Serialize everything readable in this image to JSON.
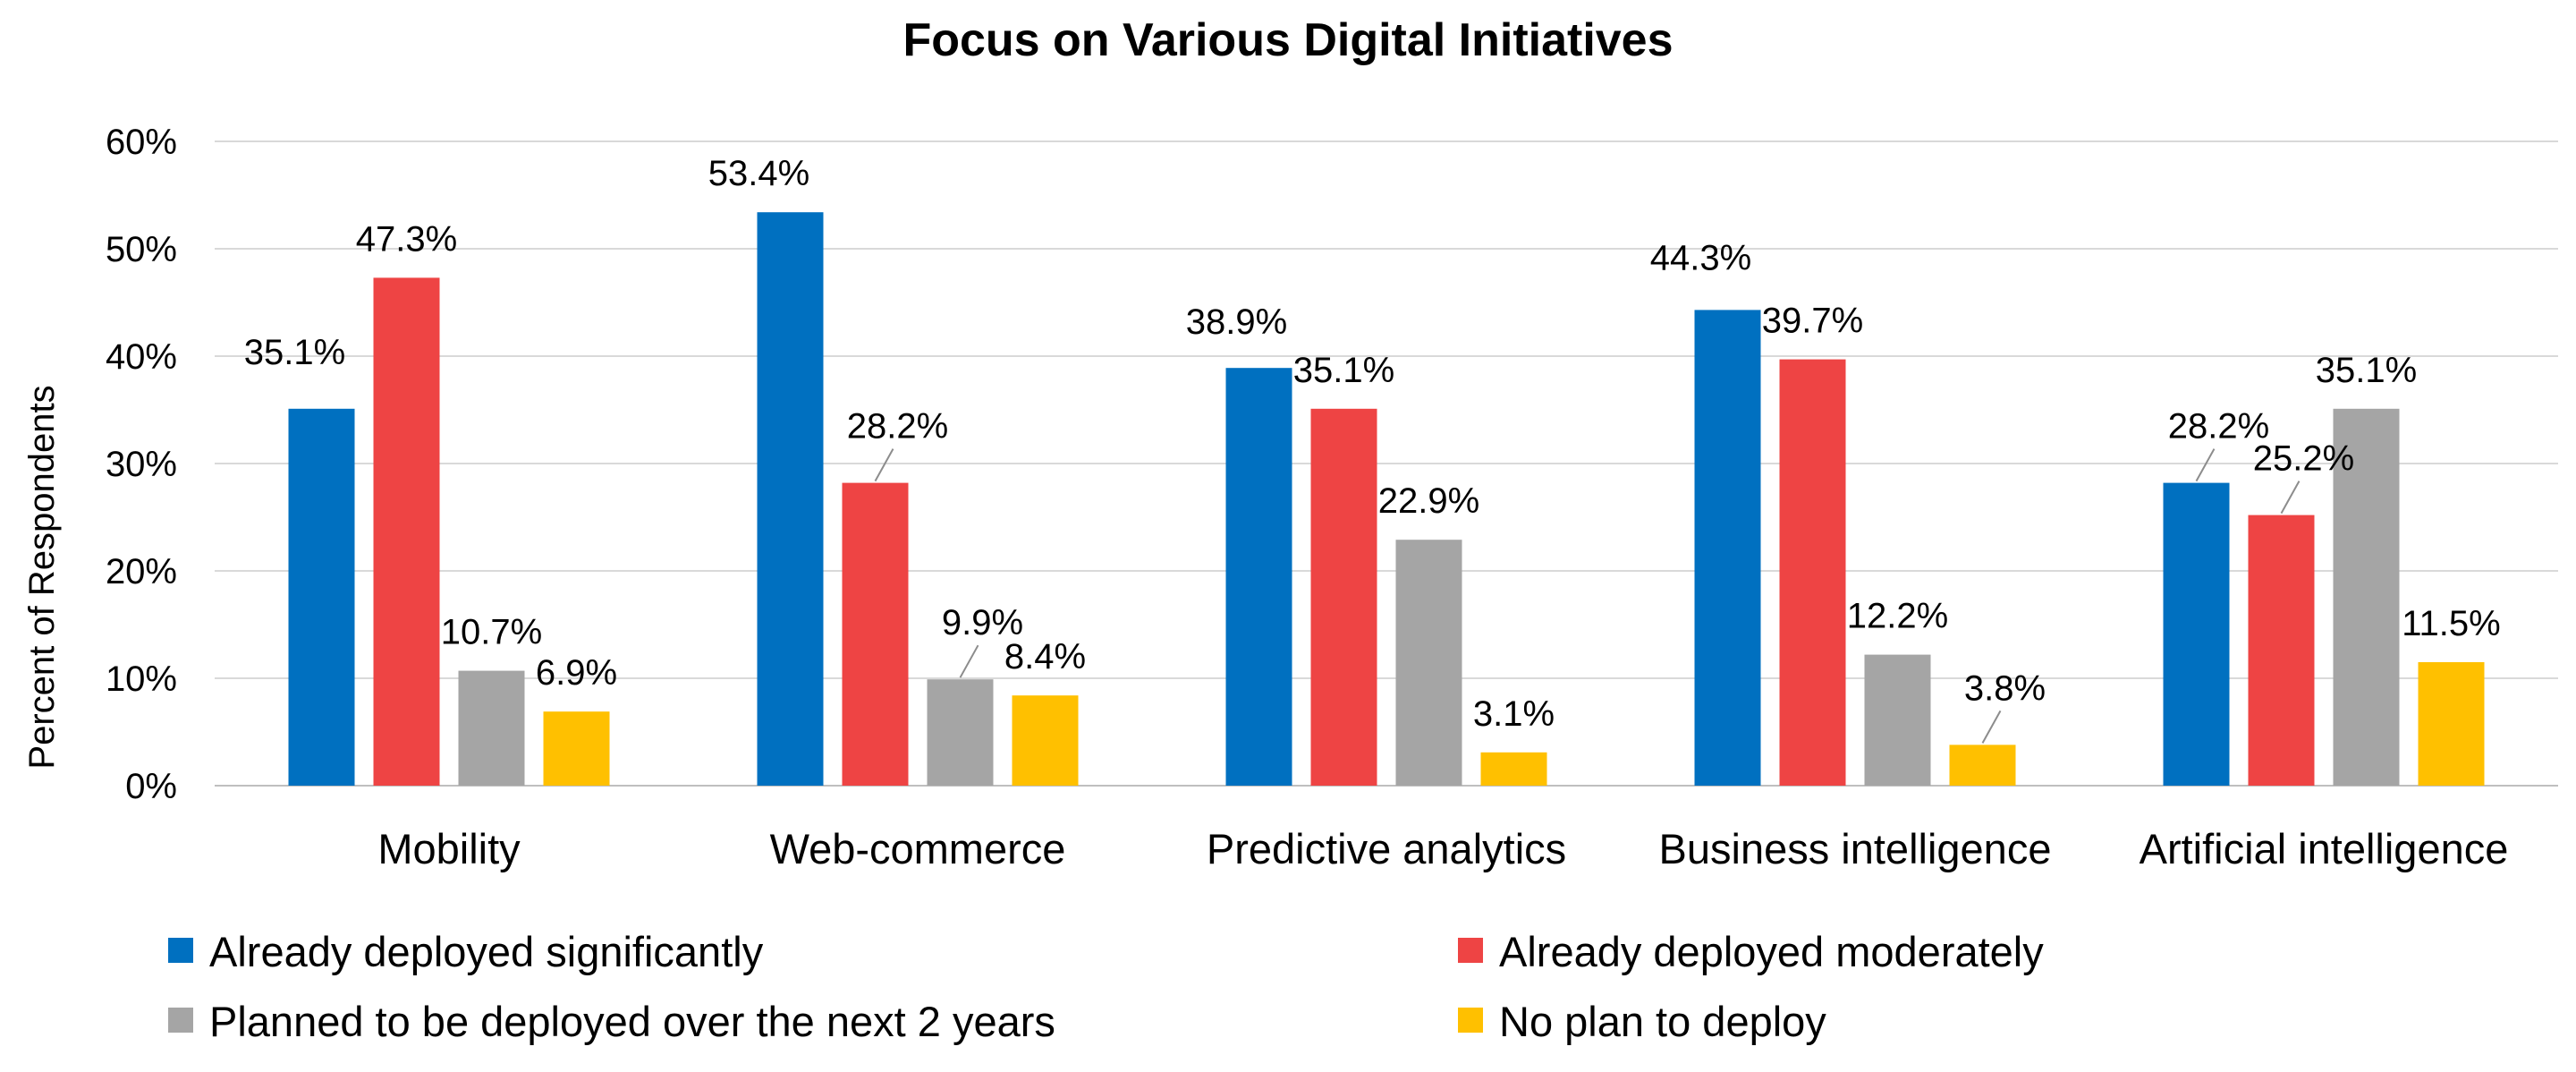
{
  "chart_data": {
    "type": "bar",
    "title": "Focus on Various Digital Initiatives",
    "xlabel": "",
    "ylabel": "Percent of Respondents",
    "ylim": [
      0,
      60
    ],
    "yticks": [
      "0%",
      "10%",
      "20%",
      "30%",
      "40%",
      "50%",
      "60%"
    ],
    "grid": true,
    "legend_position": "bottom",
    "categories": [
      "Mobility",
      "Web-commerce",
      "Predictive analytics",
      "Business intelligence",
      "Artificial intelligence"
    ],
    "series": [
      {
        "name": "Already deployed significantly",
        "color": "#0070C0",
        "values": [
          35.1,
          53.4,
          38.9,
          44.3,
          28.2
        ],
        "labels": [
          "35.1%",
          "53.4%",
          "38.9%",
          "44.3%",
          "28.2%"
        ]
      },
      {
        "name": "Already deployed moderately",
        "color": "#EE4444",
        "values": [
          47.3,
          28.2,
          35.1,
          39.7,
          25.2
        ],
        "labels": [
          "47.3%",
          "28.2%",
          "35.1%",
          "39.7%",
          "25.2%"
        ]
      },
      {
        "name": "Planned to be deployed over the next 2 years",
        "color": "#A5A5A5",
        "values": [
          10.7,
          9.9,
          22.9,
          12.2,
          35.1
        ],
        "labels": [
          "10.7%",
          "9.9%",
          "22.9%",
          "12.2%",
          "35.1%"
        ]
      },
      {
        "name": "No plan to deploy",
        "color": "#FFC000",
        "values": [
          6.9,
          8.4,
          3.1,
          3.8,
          11.5
        ],
        "labels": [
          "6.9%",
          "8.4%",
          "3.1%",
          "3.8%",
          "11.5%"
        ]
      }
    ]
  }
}
